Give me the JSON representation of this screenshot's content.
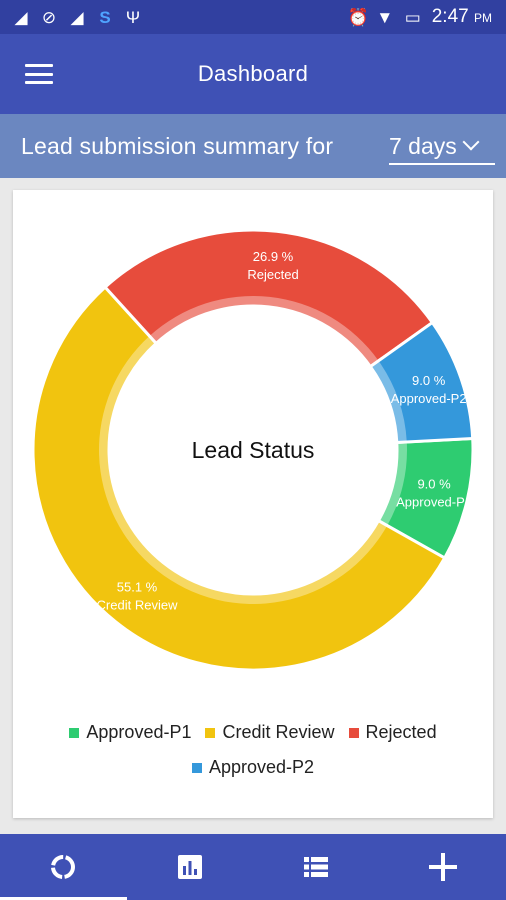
{
  "status_bar": {
    "time": "2:47",
    "ampm": "PM",
    "icons": [
      "signal-icon",
      "blocked-icon",
      "signal-icon",
      "sync-icon",
      "usb-icon",
      "alarm-icon",
      "wifi-icon",
      "battery-charging-icon",
      "signal-icon"
    ]
  },
  "app_bar": {
    "title": "Dashboard",
    "menu_icon": "hamburger-menu-icon"
  },
  "summary": {
    "label": "Lead submission summary for",
    "period": "7 days"
  },
  "chart_data": {
    "type": "pie",
    "variant": "donut",
    "center_label": "Lead Status",
    "slices": [
      {
        "name": "Approved-P1",
        "value": 9.0,
        "label": "9.0 %",
        "color": "#2ecc71"
      },
      {
        "name": "Credit Review",
        "value": 55.1,
        "label": "55.1 %",
        "color": "#f1c40f"
      },
      {
        "name": "Rejected",
        "value": 26.9,
        "label": "26.9 %",
        "color": "#e74c3c"
      },
      {
        "name": "Approved-P2",
        "value": 9.0,
        "label": "9.0 %",
        "color": "#3498db"
      }
    ],
    "legend": [
      [
        "Approved-P1",
        "Credit Review",
        "Rejected"
      ],
      [
        "Approved-P2"
      ]
    ],
    "legend_placement": "bottom"
  },
  "bottom_nav": {
    "items": [
      "donut-chart-icon",
      "bar-chart-icon",
      "list-icon",
      "add-icon"
    ],
    "active_index": 0
  },
  "colors": {
    "status_bar": "#3140a0",
    "app_bar": "#3f51b5",
    "summary_bar": "#6b87c0",
    "background": "#e9e9e9"
  }
}
